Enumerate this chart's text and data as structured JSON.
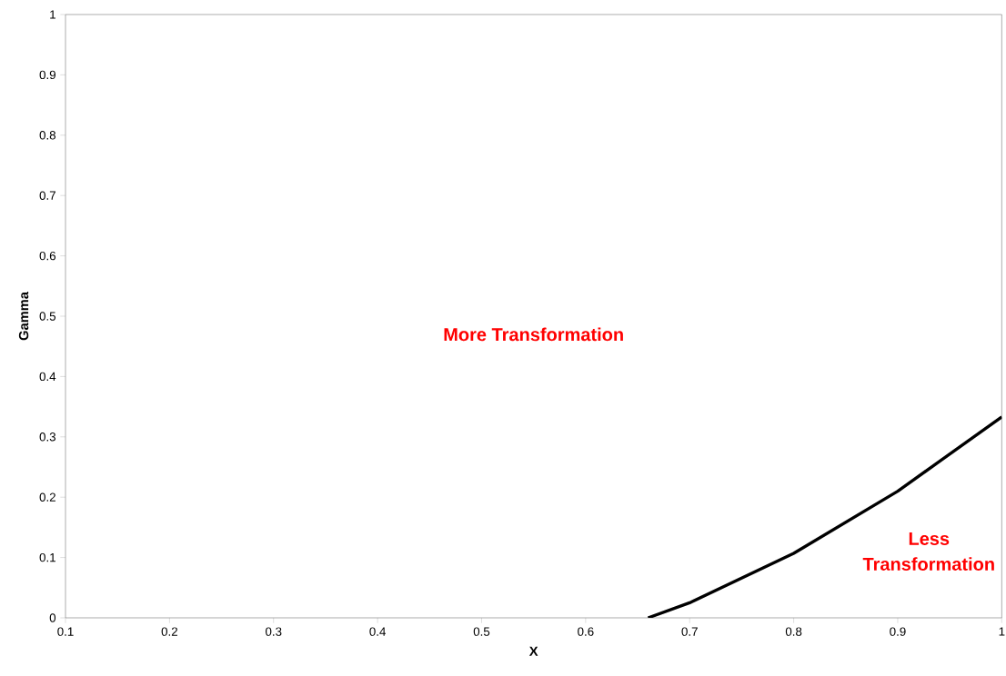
{
  "chart_data": {
    "type": "line",
    "xlabel": "X",
    "ylabel": "Gamma",
    "x": [
      0.66,
      0.7,
      0.8,
      0.9,
      1.0
    ],
    "series": [
      {
        "color": "#000000",
        "values": [
          0,
          0.025,
          0.107,
          0.21,
          0.333
        ]
      }
    ],
    "xlim": [
      0.1,
      1
    ],
    "ylim": [
      0,
      1
    ],
    "xticks": [
      0.1,
      0.2,
      0.3,
      0.4,
      0.5,
      0.6,
      0.7,
      0.8,
      0.9,
      1
    ],
    "yticks": [
      0,
      0.1,
      0.2,
      0.3,
      0.4,
      0.5,
      0.6,
      0.7,
      0.8,
      0.9,
      1
    ],
    "annotations": [
      "More Transformation",
      "Less Transformation"
    ],
    "grid": false,
    "marker": "none",
    "line_style": "solid"
  }
}
